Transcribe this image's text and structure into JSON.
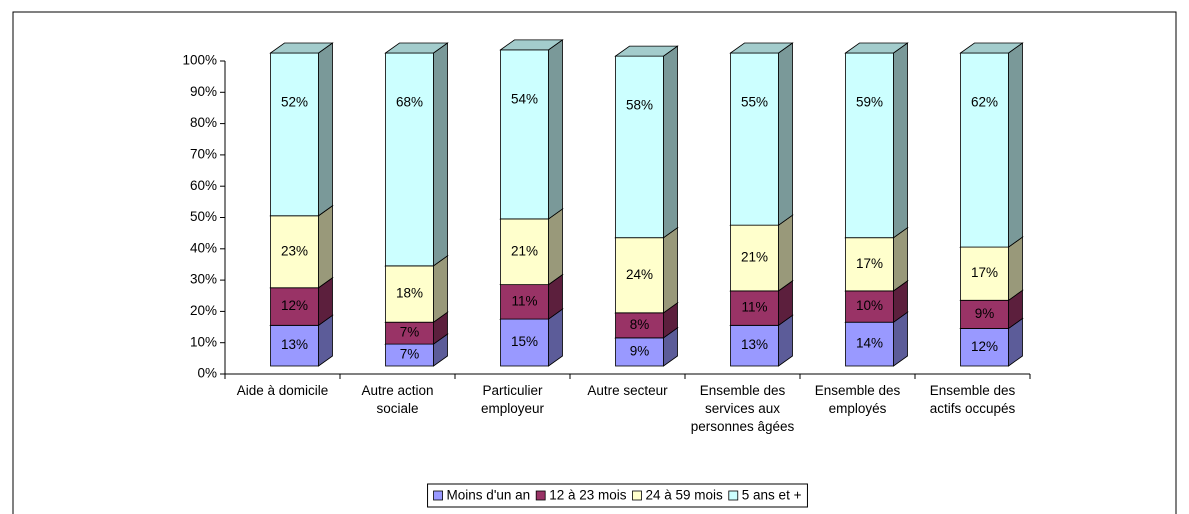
{
  "chart_data": {
    "type": "bar3d_stacked",
    "categories": [
      "Aide à domicile",
      "Autre action sociale",
      "Particulier employeur",
      "Autre secteur",
      "Ensemble des services aux personnes âgées",
      "Ensemble des employés",
      "Ensemble des actifs occupés"
    ],
    "series": [
      {
        "name": "Moins d'un an",
        "color": "#9999ff",
        "values": [
          13,
          7,
          15,
          9,
          13,
          14,
          12
        ],
        "value_labels": [
          "13%",
          "7%",
          "15%",
          "9%",
          "13%",
          "14%",
          "12%"
        ]
      },
      {
        "name": "12 à 23 mois",
        "color": "#993366",
        "values": [
          12,
          7,
          11,
          8,
          11,
          10,
          9
        ],
        "value_labels": [
          "12%",
          "7%",
          "11%",
          "8%",
          "11%",
          "10%",
          "9%"
        ]
      },
      {
        "name": "24 à 59 mois",
        "color": "#ffffcc",
        "values": [
          23,
          18,
          21,
          24,
          21,
          17,
          17
        ],
        "value_labels": [
          "23%",
          "18%",
          "21%",
          "24%",
          "21%",
          "17%",
          "17%"
        ]
      },
      {
        "name": "5 ans et +",
        "color": "#ccffff",
        "values": [
          52,
          68,
          54,
          58,
          55,
          59,
          62
        ],
        "value_labels": [
          "52%",
          "68%",
          "54%",
          "58%",
          "55%",
          "59%",
          "62%"
        ]
      }
    ],
    "ylim": [
      0,
      100
    ],
    "yticks": [
      {
        "value": 0,
        "label": "0%"
      },
      {
        "value": 10,
        "label": "10%"
      },
      {
        "value": 20,
        "label": "20%"
      },
      {
        "value": 30,
        "label": "30%"
      },
      {
        "value": 40,
        "label": "40%"
      },
      {
        "value": 50,
        "label": "50%"
      },
      {
        "value": 60,
        "label": "60%"
      },
      {
        "value": 70,
        "label": "70%"
      },
      {
        "value": 80,
        "label": "80%"
      },
      {
        "value": 90,
        "label": "90%"
      },
      {
        "value": 100,
        "label": "100%"
      }
    ],
    "grid": false,
    "legend": "bottom"
  }
}
